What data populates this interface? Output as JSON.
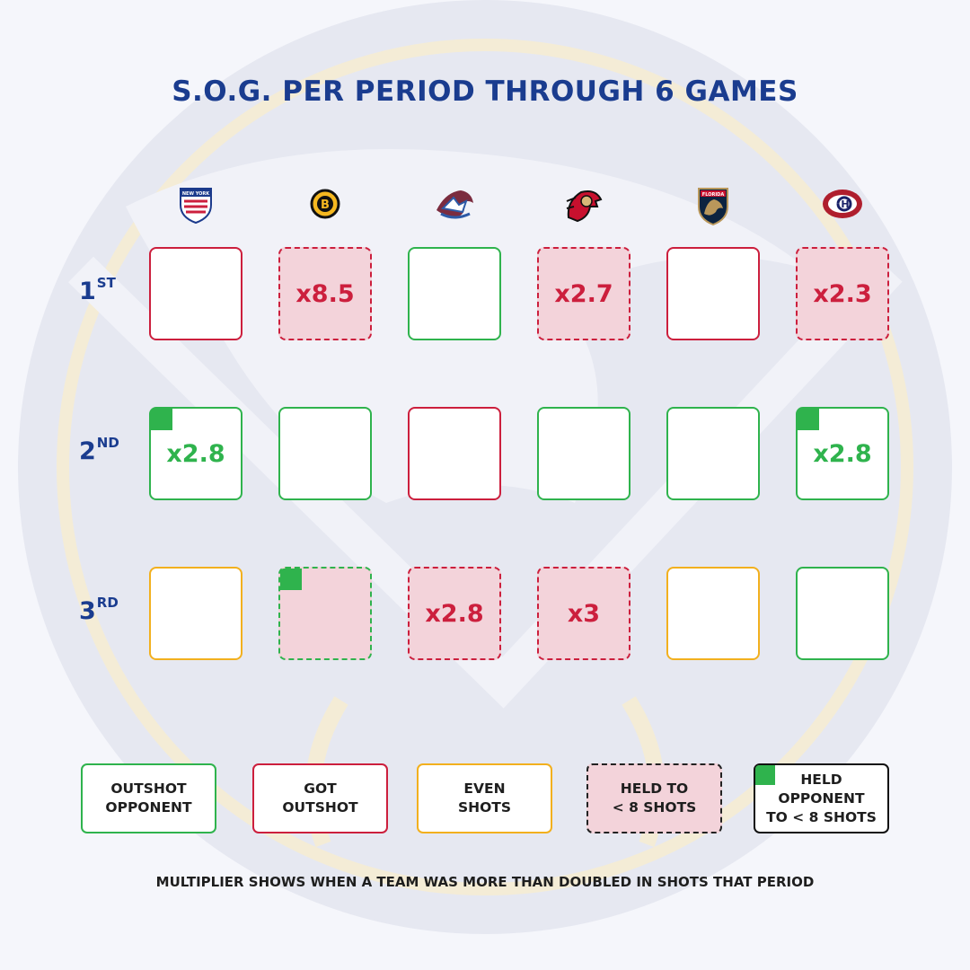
{
  "title": "S.O.G. PER PERIOD THROUGH 6 GAMES",
  "colors": {
    "outshot": "#2fb34d",
    "got_outshot": "#cc1f3d",
    "even": "#f2b01e",
    "held_fill": "#f3d3da",
    "title": "#1a3c8f"
  },
  "teams": [
    {
      "id": "rangers",
      "icon": "new-york-rangers-logo-icon",
      "logo_text": "NEW YORK"
    },
    {
      "id": "bruins",
      "icon": "boston-bruins-logo-icon",
      "logo_text": "B"
    },
    {
      "id": "avalanche",
      "icon": "colorado-avalanche-logo-icon",
      "logo_text": ""
    },
    {
      "id": "senators",
      "icon": "ottawa-senators-logo-icon",
      "logo_text": ""
    },
    {
      "id": "panthers",
      "icon": "florida-panthers-logo-icon",
      "logo_text": "FLORIDA"
    },
    {
      "id": "canadiens",
      "icon": "montreal-canadiens-logo-icon",
      "logo_text": ""
    }
  ],
  "periods": [
    {
      "num": "1",
      "suffix": "ST"
    },
    {
      "num": "2",
      "suffix": "ND"
    },
    {
      "num": "3",
      "suffix": "RD"
    }
  ],
  "chart_data": {
    "type": "table",
    "title": "S.O.G. PER PERIOD THROUGH 6 GAMES",
    "columns": [
      "Rangers",
      "Bruins",
      "Avalanche",
      "Senators",
      "Panthers",
      "Canadiens"
    ],
    "rows": [
      "1ST",
      "2ND",
      "3RD"
    ],
    "cells": [
      [
        {
          "result": "got",
          "held": false,
          "held_opp": false,
          "multiplier": ""
        },
        {
          "result": "got",
          "held": true,
          "held_opp": false,
          "multiplier": "x8.5"
        },
        {
          "result": "outshot",
          "held": false,
          "held_opp": false,
          "multiplier": ""
        },
        {
          "result": "got",
          "held": true,
          "held_opp": false,
          "multiplier": "x2.7"
        },
        {
          "result": "got",
          "held": false,
          "held_opp": false,
          "multiplier": ""
        },
        {
          "result": "got",
          "held": true,
          "held_opp": false,
          "multiplier": "x2.3"
        }
      ],
      [
        {
          "result": "outshot",
          "held": false,
          "held_opp": true,
          "multiplier": "x2.8"
        },
        {
          "result": "outshot",
          "held": false,
          "held_opp": false,
          "multiplier": ""
        },
        {
          "result": "got",
          "held": false,
          "held_opp": false,
          "multiplier": ""
        },
        {
          "result": "outshot",
          "held": false,
          "held_opp": false,
          "multiplier": ""
        },
        {
          "result": "outshot",
          "held": false,
          "held_opp": false,
          "multiplier": ""
        },
        {
          "result": "outshot",
          "held": false,
          "held_opp": true,
          "multiplier": "x2.8"
        }
      ],
      [
        {
          "result": "even",
          "held": false,
          "held_opp": false,
          "multiplier": ""
        },
        {
          "result": "outshot",
          "held": true,
          "held_opp": true,
          "multiplier": ""
        },
        {
          "result": "got",
          "held": true,
          "held_opp": false,
          "multiplier": "x2.8"
        },
        {
          "result": "got",
          "held": true,
          "held_opp": false,
          "multiplier": "x3"
        },
        {
          "result": "even",
          "held": false,
          "held_opp": false,
          "multiplier": ""
        },
        {
          "result": "outshot",
          "held": false,
          "held_opp": false,
          "multiplier": ""
        }
      ]
    ]
  },
  "legend": [
    {
      "key": "outshot",
      "label": "OUTSHOT\nOPPONENT"
    },
    {
      "key": "got",
      "label": "GOT\nOUTSHOT"
    },
    {
      "key": "even",
      "label": "EVEN\nSHOTS"
    },
    {
      "key": "held",
      "label": "HELD TO\n< 8 SHOTS"
    },
    {
      "key": "held_opp",
      "label": "HELD\nOPPONENT\nTO < 8 SHOTS"
    }
  ],
  "footnote": "MULTIPLIER SHOWS WHEN A TEAM WAS MORE THAN DOUBLED IN SHOTS THAT PERIOD"
}
